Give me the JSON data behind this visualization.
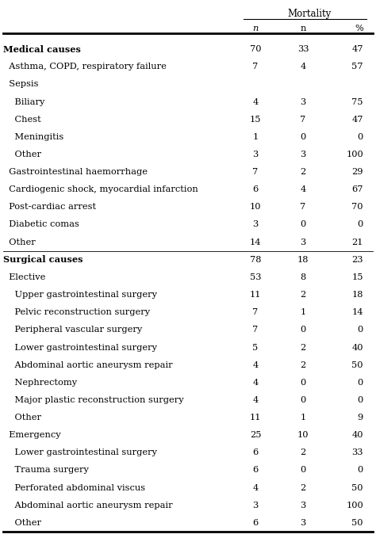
{
  "title": "Mortality",
  "rows": [
    {
      "label": "Medical causes",
      "indent": 0,
      "bold": true,
      "n": "70",
      "mort_n": "33",
      "mort_pct": "47",
      "sep_before": false,
      "sep_after": false
    },
    {
      "label": "  Asthma, COPD, respiratory failure",
      "indent": 1,
      "bold": false,
      "n": "7",
      "mort_n": "4",
      "mort_pct": "57",
      "sep_before": false,
      "sep_after": false
    },
    {
      "label": "  Sepsis",
      "indent": 1,
      "bold": false,
      "n": "",
      "mort_n": "",
      "mort_pct": "",
      "sep_before": false,
      "sep_after": false
    },
    {
      "label": "    Biliary",
      "indent": 2,
      "bold": false,
      "n": "4",
      "mort_n": "3",
      "mort_pct": "75",
      "sep_before": false,
      "sep_after": false
    },
    {
      "label": "    Chest",
      "indent": 2,
      "bold": false,
      "n": "15",
      "mort_n": "7",
      "mort_pct": "47",
      "sep_before": false,
      "sep_after": false
    },
    {
      "label": "    Meningitis",
      "indent": 2,
      "bold": false,
      "n": "1",
      "mort_n": "0",
      "mort_pct": "0",
      "sep_before": false,
      "sep_after": false
    },
    {
      "label": "    Other",
      "indent": 2,
      "bold": false,
      "n": "3",
      "mort_n": "3",
      "mort_pct": "100",
      "sep_before": false,
      "sep_after": false
    },
    {
      "label": "  Gastrointestinal haemorrhage",
      "indent": 1,
      "bold": false,
      "n": "7",
      "mort_n": "2",
      "mort_pct": "29",
      "sep_before": false,
      "sep_after": false
    },
    {
      "label": "  Cardiogenic shock, myocardial infarction",
      "indent": 1,
      "bold": false,
      "n": "6",
      "mort_n": "4",
      "mort_pct": "67",
      "sep_before": false,
      "sep_after": false
    },
    {
      "label": "  Post-cardiac arrest",
      "indent": 1,
      "bold": false,
      "n": "10",
      "mort_n": "7",
      "mort_pct": "70",
      "sep_before": false,
      "sep_after": false
    },
    {
      "label": "  Diabetic comas",
      "indent": 1,
      "bold": false,
      "n": "3",
      "mort_n": "0",
      "mort_pct": "0",
      "sep_before": false,
      "sep_after": false
    },
    {
      "label": "  Other",
      "indent": 1,
      "bold": false,
      "n": "14",
      "mort_n": "3",
      "mort_pct": "21",
      "sep_before": false,
      "sep_after": false
    },
    {
      "label": "Surgical causes",
      "indent": 0,
      "bold": true,
      "n": "78",
      "mort_n": "18",
      "mort_pct": "23",
      "sep_before": true,
      "sep_after": false
    },
    {
      "label": "  Elective",
      "indent": 1,
      "bold": false,
      "n": "53",
      "mort_n": "8",
      "mort_pct": "15",
      "sep_before": false,
      "sep_after": false
    },
    {
      "label": "    Upper gastrointestinal surgery",
      "indent": 2,
      "bold": false,
      "n": "11",
      "mort_n": "2",
      "mort_pct": "18",
      "sep_before": false,
      "sep_after": false
    },
    {
      "label": "    Pelvic reconstruction surgery",
      "indent": 2,
      "bold": false,
      "n": "7",
      "mort_n": "1",
      "mort_pct": "14",
      "sep_before": false,
      "sep_after": false
    },
    {
      "label": "    Peripheral vascular surgery",
      "indent": 2,
      "bold": false,
      "n": "7",
      "mort_n": "0",
      "mort_pct": "0",
      "sep_before": false,
      "sep_after": false
    },
    {
      "label": "    Lower gastrointestinal surgery",
      "indent": 2,
      "bold": false,
      "n": "5",
      "mort_n": "2",
      "mort_pct": "40",
      "sep_before": false,
      "sep_after": false
    },
    {
      "label": "    Abdominal aortic aneurysm repair",
      "indent": 2,
      "bold": false,
      "n": "4",
      "mort_n": "2",
      "mort_pct": "50",
      "sep_before": false,
      "sep_after": false
    },
    {
      "label": "    Nephrectomy",
      "indent": 2,
      "bold": false,
      "n": "4",
      "mort_n": "0",
      "mort_pct": "0",
      "sep_before": false,
      "sep_after": false
    },
    {
      "label": "    Major plastic reconstruction surgery",
      "indent": 2,
      "bold": false,
      "n": "4",
      "mort_n": "0",
      "mort_pct": "0",
      "sep_before": false,
      "sep_after": false
    },
    {
      "label": "    Other",
      "indent": 2,
      "bold": false,
      "n": "11",
      "mort_n": "1",
      "mort_pct": "9",
      "sep_before": false,
      "sep_after": false
    },
    {
      "label": "  Emergency",
      "indent": 1,
      "bold": false,
      "n": "25",
      "mort_n": "10",
      "mort_pct": "40",
      "sep_before": false,
      "sep_after": false
    },
    {
      "label": "    Lower gastrointestinal surgery",
      "indent": 2,
      "bold": false,
      "n": "6",
      "mort_n": "2",
      "mort_pct": "33",
      "sep_before": false,
      "sep_after": false
    },
    {
      "label": "    Trauma surgery",
      "indent": 2,
      "bold": false,
      "n": "6",
      "mort_n": "0",
      "mort_pct": "0",
      "sep_before": false,
      "sep_after": false
    },
    {
      "label": "    Perforated abdominal viscus",
      "indent": 2,
      "bold": false,
      "n": "4",
      "mort_n": "2",
      "mort_pct": "50",
      "sep_before": false,
      "sep_after": false
    },
    {
      "label": "    Abdominal aortic aneurysm repair",
      "indent": 2,
      "bold": false,
      "n": "3",
      "mort_n": "3",
      "mort_pct": "100",
      "sep_before": false,
      "sep_after": false
    },
    {
      "label": "    Other",
      "indent": 2,
      "bold": false,
      "n": "6",
      "mort_n": "3",
      "mort_pct": "50",
      "sep_before": false,
      "sep_after": false
    }
  ],
  "bg_color": "#ffffff",
  "text_color": "#000000",
  "font_size": 8.2,
  "header_font_size": 8.5
}
